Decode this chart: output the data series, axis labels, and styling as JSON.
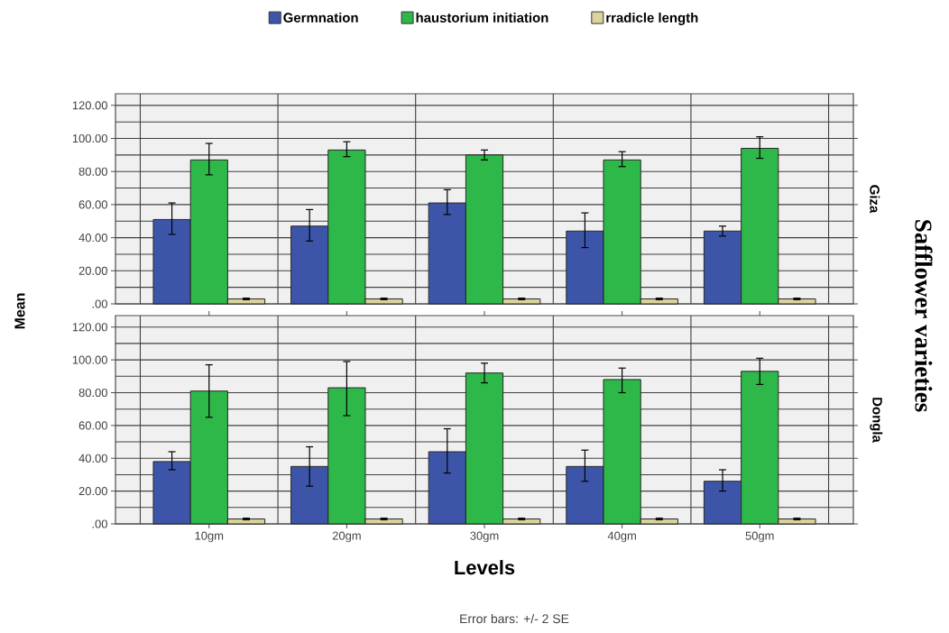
{
  "chart_data": [
    {
      "type": "bar",
      "y2label": "Giza",
      "ylabel": "Mean",
      "categories": [
        null,
        null,
        null,
        null,
        null
      ],
      "series": [
        {
          "name": "Germnation",
          "color": "#3d55a8",
          "values": [
            51,
            47,
            61,
            44,
            44
          ],
          "errors": [
            [
              42,
              61
            ],
            [
              38,
              57
            ],
            [
              54,
              69
            ],
            [
              34,
              55
            ],
            [
              41,
              47
            ]
          ]
        },
        {
          "name": "haustorium initiation",
          "color": "#2eb84a",
          "values": [
            87,
            93,
            90,
            87,
            94
          ],
          "errors": [
            [
              78,
              97
            ],
            [
              89,
              98
            ],
            [
              87,
              93
            ],
            [
              83,
              92
            ],
            [
              88,
              101
            ]
          ]
        },
        {
          "name": "rradicle length",
          "color": "#d9d49b",
          "values": [
            3,
            3,
            3,
            3,
            3
          ],
          "errors": [
            0.5,
            0.5,
            0.5,
            0.5,
            0.5
          ]
        }
      ],
      "ylim": [
        0,
        127
      ],
      "yticks": [
        {
          "value": 0,
          "label": ".00"
        },
        {
          "value": 20,
          "label": "20.00"
        },
        {
          "value": 40,
          "label": "40.00"
        },
        {
          "value": 60,
          "label": "60.00"
        },
        {
          "value": 80,
          "label": "80.00"
        },
        {
          "value": 100,
          "label": "100.00"
        },
        {
          "value": 120,
          "label": "120.00"
        }
      ],
      "grid": true,
      "legend": "top",
      "tick_labels": "y",
      "annotations": [
        "Safflower varieties",
        "Error bars: +/- 2 SE"
      ]
    },
    {
      "type": "bar",
      "y2label": "Dongla",
      "xlabel": "Levels",
      "categories": [
        "10gm",
        "20gm",
        "30gm",
        "40gm",
        "50gm"
      ],
      "series": [
        {
          "color": "#3d55a8",
          "values": [
            38,
            35,
            44,
            35,
            26
          ],
          "errors": [
            [
              33,
              44
            ],
            [
              23,
              47
            ],
            [
              31,
              58
            ],
            [
              26,
              45
            ],
            [
              20,
              33
            ]
          ]
        },
        {
          "color": "#2eb84a",
          "values": [
            81,
            83,
            92,
            88,
            93
          ],
          "errors": [
            [
              65,
              97
            ],
            [
              66,
              99
            ],
            [
              86,
              98
            ],
            [
              80,
              95
            ],
            [
              85,
              101
            ]
          ]
        },
        {
          "color": "#d9d49b",
          "values": [
            3,
            3,
            3,
            3,
            3
          ],
          "errors": [
            0.5,
            0.5,
            0.5,
            0.5,
            0.5
          ]
        }
      ],
      "ylim": [
        0,
        127
      ],
      "yticks": [
        {
          "value": 0,
          "label": ".00"
        },
        {
          "value": 20,
          "label": "20.00"
        },
        {
          "value": 40,
          "label": "40.00"
        },
        {
          "value": 60,
          "label": "60.00"
        },
        {
          "value": 80,
          "label": "80.00"
        },
        {
          "value": 100,
          "label": "100.00"
        },
        {
          "value": 120,
          "label": "120.00"
        }
      ],
      "grid": true
    }
  ]
}
